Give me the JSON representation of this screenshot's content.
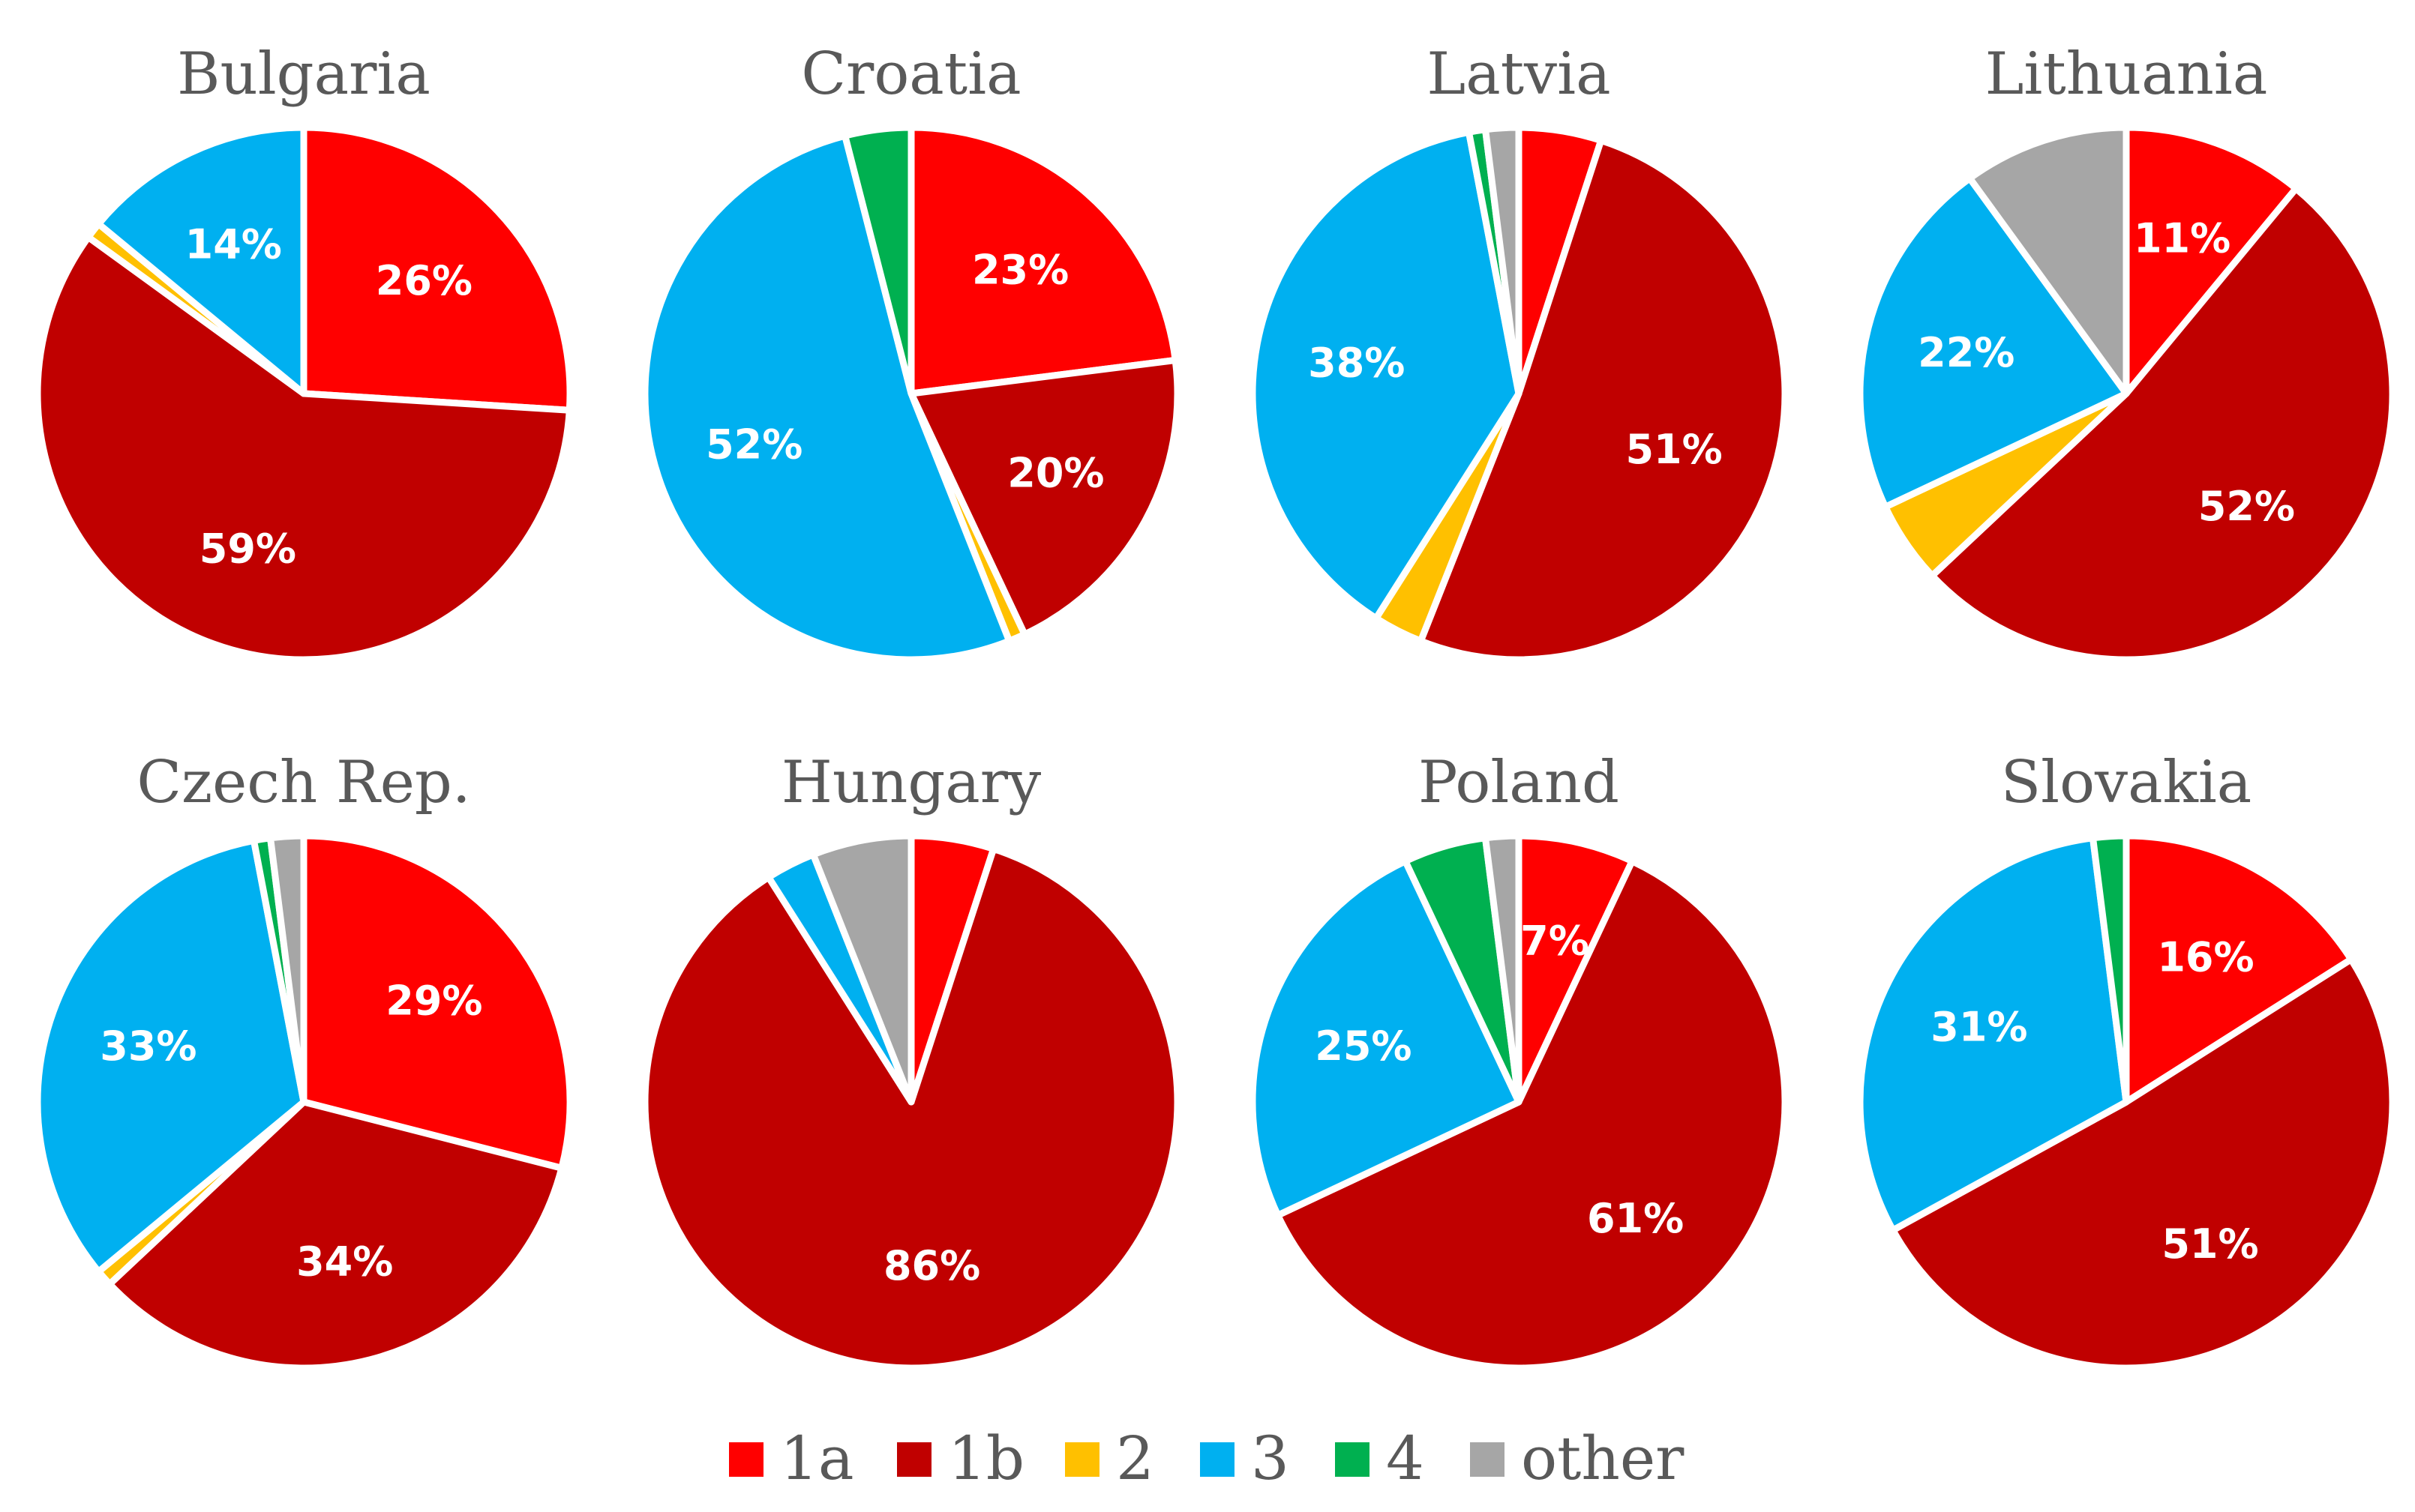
{
  "chart_data": {
    "type": "pie",
    "legend": {
      "position": "bottom",
      "entries": [
        {
          "key": "1a",
          "label": "1a",
          "color": "#ff0000"
        },
        {
          "key": "1b",
          "label": "1b",
          "color": "#c00000"
        },
        {
          "key": "2",
          "label": "2",
          "color": "#ffc000"
        },
        {
          "key": "3",
          "label": "3",
          "color": "#00b0f0"
        },
        {
          "key": "4",
          "label": "4",
          "color": "#00b050"
        },
        {
          "key": "other",
          "label": "other",
          "color": "#a6a6a6"
        }
      ]
    },
    "charts": [
      {
        "title": "Bulgaria",
        "slices": [
          {
            "category": "1a",
            "value": 26,
            "label": "26%"
          },
          {
            "category": "1b",
            "value": 59,
            "label": "59%"
          },
          {
            "category": "2",
            "value": 1,
            "label": ""
          },
          {
            "category": "3",
            "value": 14,
            "label": "14%"
          }
        ]
      },
      {
        "title": "Croatia",
        "slices": [
          {
            "category": "1a",
            "value": 23,
            "label": "23%"
          },
          {
            "category": "1b",
            "value": 20,
            "label": "20%"
          },
          {
            "category": "2",
            "value": 1,
            "label": ""
          },
          {
            "category": "3",
            "value": 52,
            "label": "52%"
          },
          {
            "category": "4",
            "value": 4,
            "label": ""
          }
        ]
      },
      {
        "title": "Latvia",
        "slices": [
          {
            "category": "1a",
            "value": 5,
            "label": ""
          },
          {
            "category": "1b",
            "value": 51,
            "label": "51%"
          },
          {
            "category": "2",
            "value": 3,
            "label": ""
          },
          {
            "category": "3",
            "value": 38,
            "label": "38%"
          },
          {
            "category": "4",
            "value": 1,
            "label": ""
          },
          {
            "category": "other",
            "value": 2,
            "label": ""
          }
        ]
      },
      {
        "title": "Lithuania",
        "slices": [
          {
            "category": "1a",
            "value": 11,
            "label": "11%"
          },
          {
            "category": "1b",
            "value": 52,
            "label": "52%"
          },
          {
            "category": "2",
            "value": 5,
            "label": ""
          },
          {
            "category": "3",
            "value": 22,
            "label": "22%"
          },
          {
            "category": "other",
            "value": 10,
            "label": ""
          }
        ]
      },
      {
        "title": "Czech Rep.",
        "slices": [
          {
            "category": "1a",
            "value": 29,
            "label": "29%"
          },
          {
            "category": "1b",
            "value": 34,
            "label": "34%"
          },
          {
            "category": "2",
            "value": 1,
            "label": ""
          },
          {
            "category": "3",
            "value": 33,
            "label": "33%"
          },
          {
            "category": "4",
            "value": 1,
            "label": ""
          },
          {
            "category": "other",
            "value": 2,
            "label": ""
          }
        ]
      },
      {
        "title": "Hungary",
        "slices": [
          {
            "category": "1a",
            "value": 5,
            "label": ""
          },
          {
            "category": "1b",
            "value": 86,
            "label": "86%"
          },
          {
            "category": "3",
            "value": 3,
            "label": ""
          },
          {
            "category": "other",
            "value": 6,
            "label": ""
          }
        ]
      },
      {
        "title": "Poland",
        "slices": [
          {
            "category": "1a",
            "value": 7,
            "label": "7%"
          },
          {
            "category": "1b",
            "value": 61,
            "label": "61%"
          },
          {
            "category": "3",
            "value": 25,
            "label": "25%"
          },
          {
            "category": "4",
            "value": 5,
            "label": ""
          },
          {
            "category": "other",
            "value": 2,
            "label": ""
          }
        ]
      },
      {
        "title": "Slovakia",
        "slices": [
          {
            "category": "1a",
            "value": 16,
            "label": "16%"
          },
          {
            "category": "1b",
            "value": 51,
            "label": "51%"
          },
          {
            "category": "3",
            "value": 31,
            "label": "31%"
          },
          {
            "category": "4",
            "value": 2,
            "label": ""
          }
        ]
      }
    ]
  }
}
